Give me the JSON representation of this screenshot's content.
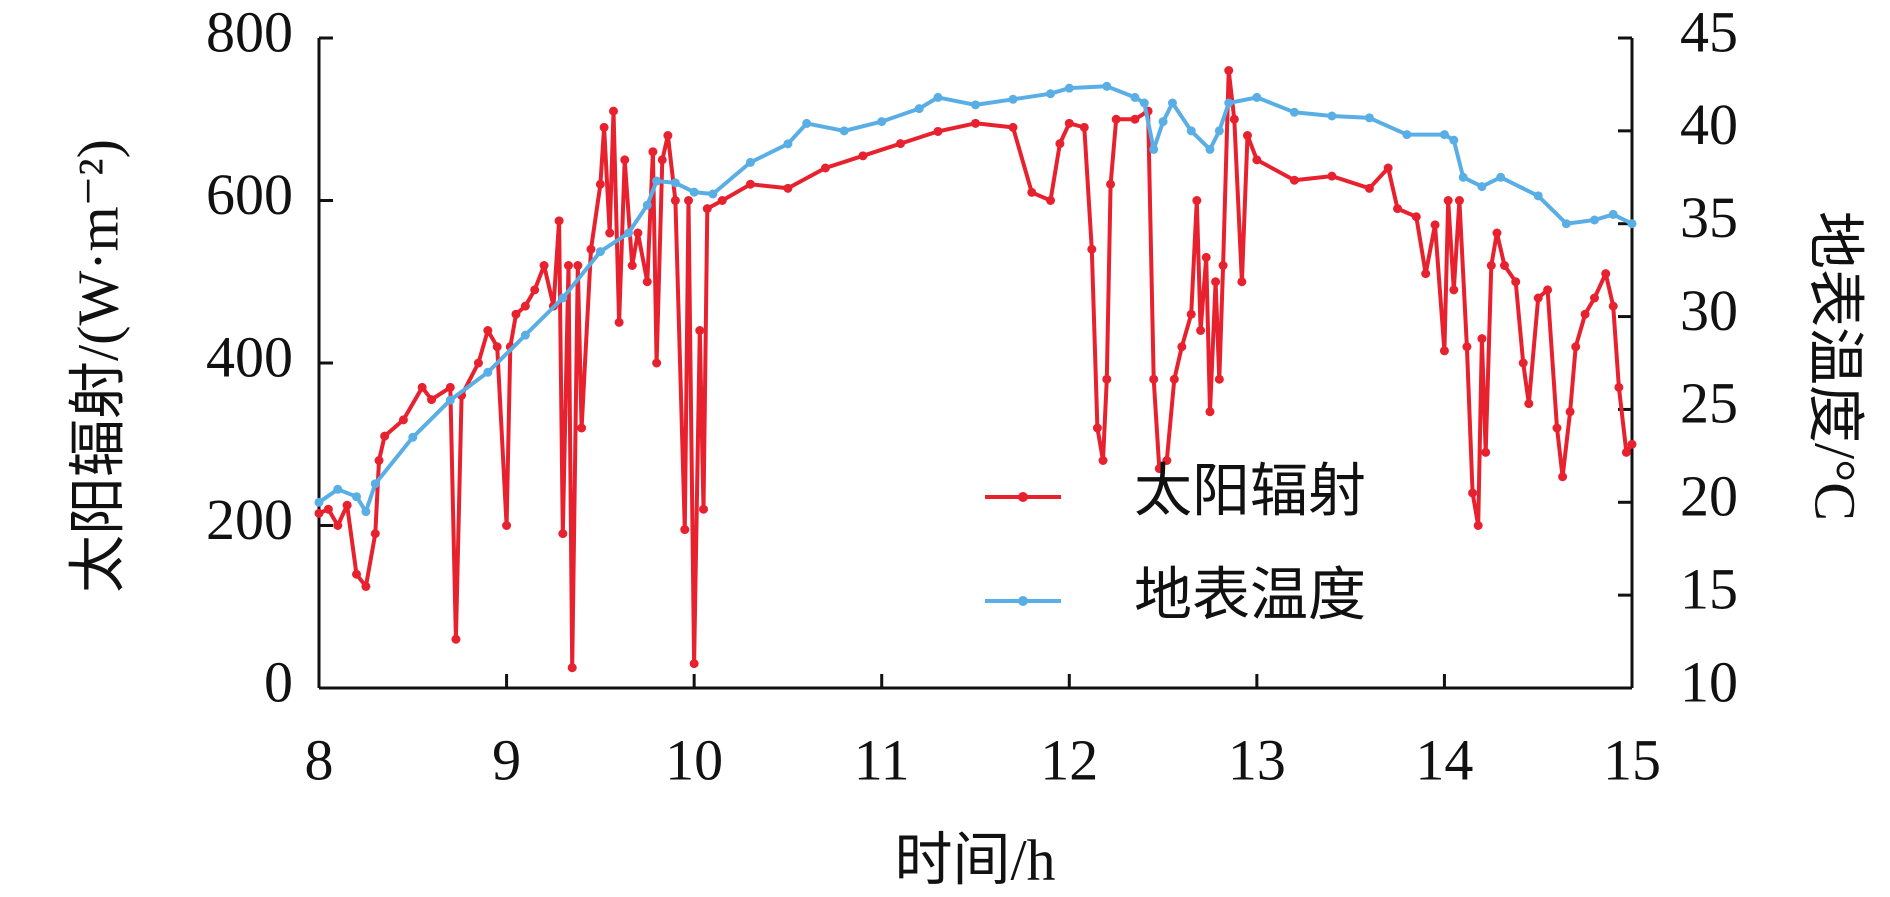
{
  "chart_data": {
    "type": "line",
    "x_label": "时间/h",
    "y_label": "太阳辐射/(W·m⁻²)",
    "y2_label": "地表温度/°C",
    "xlim": [
      8,
      15
    ],
    "xticks": [
      8,
      9,
      10,
      11,
      12,
      13,
      14,
      15
    ],
    "ylim": [
      0,
      800
    ],
    "yticks": [
      0,
      200,
      400,
      600,
      800
    ],
    "y2lim": [
      10,
      45
    ],
    "y2ticks": [
      10,
      15,
      20,
      25,
      30,
      35,
      40,
      45
    ],
    "legend": "lower right",
    "series": [
      {
        "name": "太阳辐射",
        "color": "#e8212e",
        "x": [
          8.0,
          8.05,
          8.1,
          8.15,
          8.2,
          8.25,
          8.3,
          8.32,
          8.35,
          8.45,
          8.55,
          8.6,
          8.7,
          8.73,
          8.76,
          8.85,
          8.9,
          8.95,
          9.0,
          9.02,
          9.05,
          9.1,
          9.15,
          9.2,
          9.25,
          9.28,
          9.3,
          9.33,
          9.35,
          9.38,
          9.4,
          9.45,
          9.5,
          9.52,
          9.55,
          9.57,
          9.6,
          9.63,
          9.67,
          9.7,
          9.75,
          9.78,
          9.8,
          9.83,
          9.86,
          9.9,
          9.95,
          9.97,
          10.0,
          10.03,
          10.05,
          10.07,
          10.15,
          10.3,
          10.5,
          10.7,
          10.9,
          11.1,
          11.3,
          11.5,
          11.7,
          11.8,
          11.9,
          11.95,
          12.0,
          12.08,
          12.12,
          12.15,
          12.18,
          12.2,
          12.22,
          12.25,
          12.35,
          12.42,
          12.45,
          12.48,
          12.52,
          12.56,
          12.6,
          12.65,
          12.68,
          12.7,
          12.73,
          12.75,
          12.78,
          12.8,
          12.82,
          12.85,
          12.88,
          12.92,
          12.95,
          13.0,
          13.2,
          13.4,
          13.6,
          13.7,
          13.75,
          13.85,
          13.9,
          13.95,
          14.0,
          14.02,
          14.05,
          14.08,
          14.12,
          14.15,
          14.18,
          14.2,
          14.22,
          14.25,
          14.28,
          14.32,
          14.38,
          14.42,
          14.45,
          14.5,
          14.55,
          14.6,
          14.63,
          14.67,
          14.7,
          14.75,
          14.8,
          14.86,
          14.9,
          14.93,
          14.97,
          15.0
        ],
        "values": [
          215,
          220,
          200,
          225,
          140,
          125,
          190,
          280,
          310,
          330,
          370,
          355,
          370,
          60,
          360,
          400,
          440,
          420,
          200,
          420,
          460,
          470,
          490,
          520,
          470,
          575,
          190,
          520,
          25,
          520,
          320,
          540,
          620,
          690,
          560,
          710,
          450,
          650,
          520,
          560,
          500,
          660,
          400,
          650,
          680,
          600,
          195,
          600,
          30,
          440,
          220,
          590,
          600,
          620,
          615,
          640,
          655,
          670,
          685,
          695,
          690,
          610,
          600,
          670,
          695,
          690,
          540,
          320,
          280,
          380,
          620,
          700,
          700,
          710,
          380,
          270,
          280,
          380,
          420,
          460,
          600,
          440,
          530,
          340,
          500,
          380,
          520,
          760,
          700,
          500,
          680,
          650,
          625,
          630,
          615,
          640,
          590,
          580,
          510,
          570,
          415,
          600,
          490,
          600,
          420,
          240,
          200,
          430,
          290,
          520,
          560,
          520,
          500,
          400,
          350,
          480,
          490,
          320,
          260,
          340,
          420,
          460,
          480,
          510,
          470,
          370,
          290,
          300
        ]
      },
      {
        "name": "地表温度",
        "color": "#5aaee6",
        "axis": "y2",
        "x": [
          8.0,
          8.1,
          8.2,
          8.25,
          8.3,
          8.5,
          8.7,
          8.9,
          9.1,
          9.3,
          9.5,
          9.65,
          9.75,
          9.8,
          9.9,
          10.0,
          10.1,
          10.3,
          10.5,
          10.6,
          10.8,
          11.0,
          11.2,
          11.3,
          11.5,
          11.7,
          11.9,
          12.0,
          12.2,
          12.35,
          12.4,
          12.45,
          12.5,
          12.55,
          12.65,
          12.75,
          12.8,
          12.85,
          13.0,
          13.2,
          13.4,
          13.6,
          13.8,
          14.0,
          14.05,
          14.1,
          14.2,
          14.3,
          14.5,
          14.65,
          14.8,
          14.9,
          15.0
        ],
        "values": [
          20.0,
          20.7,
          20.3,
          19.5,
          21.0,
          23.5,
          25.5,
          27.0,
          29.0,
          31.0,
          33.5,
          34.5,
          36.0,
          37.3,
          37.2,
          36.7,
          36.6,
          38.3,
          39.3,
          40.4,
          40.0,
          40.5,
          41.2,
          41.8,
          41.4,
          41.7,
          42.0,
          42.3,
          42.4,
          41.8,
          41.5,
          39.0,
          40.5,
          41.5,
          40.0,
          39.0,
          40.0,
          41.5,
          41.8,
          41.0,
          40.8,
          40.7,
          39.8,
          39.8,
          39.5,
          37.5,
          37.0,
          37.5,
          36.5,
          35.0,
          35.2,
          35.5,
          35.0
        ]
      }
    ]
  }
}
